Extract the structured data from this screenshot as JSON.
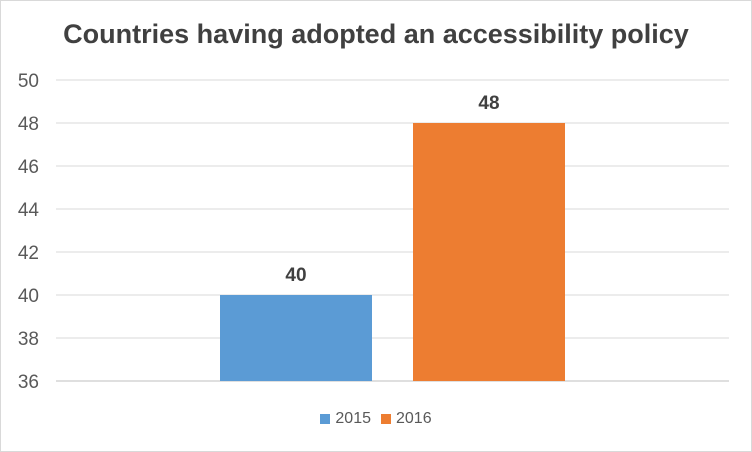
{
  "chart_data": {
    "type": "bar",
    "title": "Countries having adopted an accessibility policy",
    "categories": [
      ""
    ],
    "series": [
      {
        "name": "2015",
        "values": [
          40
        ],
        "color": "#5b9bd5"
      },
      {
        "name": "2016",
        "values": [
          48
        ],
        "color": "#ed7d31"
      }
    ],
    "ylim": [
      36,
      50
    ],
    "yticks": [
      36,
      38,
      40,
      42,
      44,
      46,
      48,
      50
    ],
    "xlabel": "",
    "ylabel": "",
    "grid": true,
    "legend": "bottom",
    "data_labels": [
      "40",
      "48"
    ]
  }
}
